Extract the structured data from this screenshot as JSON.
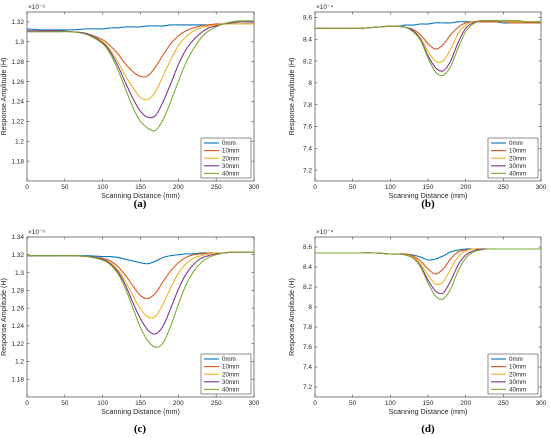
{
  "colors": {
    "0mm": "#0072BD",
    "10mm": "#D95319",
    "20mm": "#EDB120",
    "30mm": "#7E2F8E",
    "40mm": "#77AC30"
  },
  "chart_data": [
    {
      "type": "line",
      "caption": "(a)",
      "xlabel": "Scanning Distance (mm)",
      "ylabel": "Response Amplitude (H)",
      "exponent": "×10⁻³",
      "xlim": [
        0,
        300
      ],
      "ylim": [
        1.16,
        1.33
      ],
      "xticks": [
        "0",
        "50",
        "100",
        "150",
        "200",
        "250",
        "300"
      ],
      "yticks": [
        "1.18",
        "1.2",
        "1.22",
        "1.24",
        "1.26",
        "1.28",
        "1.3",
        "1.32"
      ],
      "legend_position": "right",
      "x": [
        0,
        20,
        40,
        60,
        80,
        100,
        110,
        120,
        130,
        140,
        150,
        160,
        170,
        180,
        190,
        200,
        210,
        220,
        230,
        240,
        250,
        260,
        270,
        280,
        290,
        300
      ],
      "series": [
        {
          "name": "0mm",
          "values": [
            1.313,
            1.312,
            1.312,
            1.312,
            1.313,
            1.313,
            1.314,
            1.314,
            1.315,
            1.315,
            1.315,
            1.316,
            1.316,
            1.316,
            1.317,
            1.317,
            1.317,
            1.317,
            1.317,
            1.317,
            1.317,
            1.318,
            1.318,
            1.318,
            1.318,
            1.318
          ]
        },
        {
          "name": "10mm",
          "values": [
            1.311,
            1.311,
            1.311,
            1.31,
            1.308,
            1.302,
            1.296,
            1.288,
            1.278,
            1.27,
            1.265,
            1.266,
            1.275,
            1.287,
            1.298,
            1.306,
            1.311,
            1.314,
            1.316,
            1.317,
            1.318,
            1.318,
            1.318,
            1.318,
            1.318,
            1.318
          ]
        },
        {
          "name": "20mm",
          "values": [
            1.311,
            1.311,
            1.311,
            1.31,
            1.308,
            1.3,
            1.292,
            1.28,
            1.266,
            1.254,
            1.244,
            1.242,
            1.25,
            1.266,
            1.282,
            1.296,
            1.305,
            1.311,
            1.314,
            1.316,
            1.317,
            1.318,
            1.318,
            1.318,
            1.318,
            1.318
          ]
        },
        {
          "name": "30mm",
          "values": [
            1.311,
            1.311,
            1.311,
            1.31,
            1.308,
            1.299,
            1.29,
            1.276,
            1.259,
            1.243,
            1.23,
            1.224,
            1.226,
            1.24,
            1.258,
            1.277,
            1.292,
            1.302,
            1.309,
            1.314,
            1.316,
            1.318,
            1.319,
            1.32,
            1.32,
            1.32
          ]
        },
        {
          "name": "40mm",
          "values": [
            1.31,
            1.31,
            1.31,
            1.31,
            1.307,
            1.298,
            1.288,
            1.272,
            1.253,
            1.234,
            1.22,
            1.213,
            1.211,
            1.222,
            1.24,
            1.26,
            1.279,
            1.293,
            1.304,
            1.311,
            1.315,
            1.318,
            1.32,
            1.321,
            1.321,
            1.321
          ]
        }
      ]
    },
    {
      "type": "line",
      "caption": "(b)",
      "xlabel": "Scanning Distance (mm)",
      "ylabel": "Response Amplitude (H)",
      "exponent": "×10⁻⁴",
      "xlim": [
        0,
        300
      ],
      "ylim": [
        7.1,
        8.65
      ],
      "xticks": [
        "0",
        "50",
        "100",
        "150",
        "200",
        "250",
        "300"
      ],
      "yticks": [
        "7.2",
        "7.4",
        "7.6",
        "7.8",
        "8",
        "8.2",
        "8.4",
        "8.6"
      ],
      "legend_position": "right",
      "x": [
        0,
        20,
        40,
        60,
        80,
        100,
        110,
        120,
        130,
        140,
        150,
        160,
        170,
        180,
        190,
        200,
        210,
        220,
        230,
        240,
        250,
        260,
        270,
        280,
        290,
        300
      ],
      "series": [
        {
          "name": "0mm",
          "values": [
            8.5,
            8.5,
            8.5,
            8.5,
            8.51,
            8.52,
            8.52,
            8.53,
            8.53,
            8.54,
            8.54,
            8.55,
            8.55,
            8.55,
            8.56,
            8.56,
            8.56,
            8.56,
            8.56,
            8.56,
            8.55,
            8.55,
            8.55,
            8.55,
            8.55,
            8.55
          ]
        },
        {
          "name": "10mm",
          "values": [
            8.5,
            8.5,
            8.5,
            8.5,
            8.51,
            8.52,
            8.52,
            8.51,
            8.49,
            8.44,
            8.36,
            8.31,
            8.35,
            8.44,
            8.51,
            8.55,
            8.56,
            8.56,
            8.56,
            8.56,
            8.56,
            8.55,
            8.55,
            8.55,
            8.55,
            8.55
          ]
        },
        {
          "name": "20mm",
          "values": [
            8.5,
            8.5,
            8.5,
            8.5,
            8.51,
            8.52,
            8.52,
            8.51,
            8.48,
            8.41,
            8.29,
            8.2,
            8.2,
            8.31,
            8.45,
            8.53,
            8.56,
            8.57,
            8.57,
            8.57,
            8.56,
            8.56,
            8.56,
            8.56,
            8.56,
            8.56
          ]
        },
        {
          "name": "30mm",
          "values": [
            8.5,
            8.5,
            8.5,
            8.5,
            8.51,
            8.52,
            8.52,
            8.51,
            8.48,
            8.4,
            8.25,
            8.14,
            8.11,
            8.2,
            8.37,
            8.5,
            8.55,
            8.57,
            8.57,
            8.57,
            8.57,
            8.57,
            8.57,
            8.56,
            8.56,
            8.56
          ]
        },
        {
          "name": "40mm",
          "values": [
            8.5,
            8.5,
            8.5,
            8.5,
            8.51,
            8.52,
            8.52,
            8.51,
            8.47,
            8.39,
            8.23,
            8.1,
            8.07,
            8.15,
            8.32,
            8.47,
            8.54,
            8.57,
            8.57,
            8.57,
            8.57,
            8.57,
            8.57,
            8.56,
            8.56,
            8.56
          ]
        }
      ]
    },
    {
      "type": "line",
      "caption": "(c)",
      "xlabel": "Scanning Distance (mm)",
      "ylabel": "Response Amplitude (H)",
      "exponent": "×10⁻³",
      "xlim": [
        0,
        300
      ],
      "ylim": [
        1.16,
        1.34
      ],
      "xticks": [
        "0",
        "50",
        "100",
        "150",
        "200",
        "250",
        "300"
      ],
      "yticks": [
        "1.18",
        "1.2",
        "1.22",
        "1.24",
        "1.26",
        "1.28",
        "1.3",
        "1.32",
        "1.34"
      ],
      "legend_position": "right",
      "x": [
        0,
        20,
        40,
        60,
        80,
        100,
        110,
        120,
        130,
        140,
        150,
        160,
        170,
        180,
        190,
        200,
        210,
        220,
        230,
        240,
        250,
        260,
        270,
        280,
        290,
        300
      ],
      "series": [
        {
          "name": "0mm",
          "values": [
            1.319,
            1.319,
            1.319,
            1.319,
            1.319,
            1.318,
            1.318,
            1.317,
            1.315,
            1.313,
            1.311,
            1.31,
            1.313,
            1.317,
            1.319,
            1.32,
            1.321,
            1.321,
            1.322,
            1.322,
            1.322,
            1.322,
            1.323,
            1.323,
            1.323,
            1.323
          ]
        },
        {
          "name": "10mm",
          "values": [
            1.319,
            1.319,
            1.319,
            1.319,
            1.318,
            1.316,
            1.313,
            1.307,
            1.297,
            1.285,
            1.274,
            1.271,
            1.277,
            1.29,
            1.302,
            1.311,
            1.317,
            1.32,
            1.321,
            1.322,
            1.322,
            1.322,
            1.323,
            1.323,
            1.323,
            1.323
          ]
        },
        {
          "name": "20mm",
          "values": [
            1.319,
            1.319,
            1.319,
            1.319,
            1.318,
            1.315,
            1.311,
            1.303,
            1.29,
            1.274,
            1.259,
            1.25,
            1.251,
            1.265,
            1.283,
            1.299,
            1.31,
            1.316,
            1.319,
            1.321,
            1.322,
            1.322,
            1.323,
            1.323,
            1.323,
            1.323
          ]
        },
        {
          "name": "30mm",
          "values": [
            1.319,
            1.319,
            1.319,
            1.319,
            1.318,
            1.315,
            1.31,
            1.301,
            1.286,
            1.266,
            1.248,
            1.235,
            1.231,
            1.24,
            1.26,
            1.281,
            1.298,
            1.309,
            1.316,
            1.319,
            1.321,
            1.322,
            1.323,
            1.323,
            1.323,
            1.323
          ]
        },
        {
          "name": "40mm",
          "values": [
            1.319,
            1.319,
            1.319,
            1.319,
            1.318,
            1.314,
            1.309,
            1.299,
            1.282,
            1.26,
            1.238,
            1.223,
            1.216,
            1.221,
            1.24,
            1.264,
            1.286,
            1.301,
            1.311,
            1.317,
            1.32,
            1.322,
            1.323,
            1.323,
            1.323,
            1.323
          ]
        }
      ]
    },
    {
      "type": "line",
      "caption": "(d)",
      "xlabel": "Scanning Distance (mm)",
      "ylabel": "Response Amplitude (H)",
      "exponent": "×10⁻⁴",
      "xlim": [
        0,
        300
      ],
      "ylim": [
        7.1,
        8.7
      ],
      "xticks": [
        "0",
        "50",
        "100",
        "150",
        "200",
        "250",
        "300"
      ],
      "yticks": [
        "7.2",
        "7.4",
        "7.6",
        "7.8",
        "8",
        "8.2",
        "8.4",
        "8.6"
      ],
      "legend_position": "right",
      "x": [
        0,
        20,
        40,
        60,
        80,
        100,
        110,
        120,
        130,
        140,
        150,
        160,
        170,
        180,
        190,
        200,
        210,
        220,
        230,
        240,
        250,
        260,
        270,
        280,
        290,
        300
      ],
      "series": [
        {
          "name": "0mm",
          "values": [
            8.54,
            8.54,
            8.54,
            8.54,
            8.54,
            8.53,
            8.53,
            8.53,
            8.52,
            8.5,
            8.47,
            8.48,
            8.51,
            8.55,
            8.57,
            8.58,
            8.58,
            8.58,
            8.58,
            8.58,
            8.58,
            8.58,
            8.58,
            8.58,
            8.58,
            8.58
          ]
        },
        {
          "name": "10mm",
          "values": [
            8.54,
            8.54,
            8.54,
            8.54,
            8.54,
            8.53,
            8.53,
            8.53,
            8.51,
            8.46,
            8.38,
            8.33,
            8.38,
            8.48,
            8.55,
            8.57,
            8.58,
            8.58,
            8.58,
            8.58,
            8.58,
            8.58,
            8.58,
            8.58,
            8.58,
            8.58
          ]
        },
        {
          "name": "20mm",
          "values": [
            8.54,
            8.54,
            8.54,
            8.54,
            8.54,
            8.53,
            8.53,
            8.52,
            8.5,
            8.43,
            8.32,
            8.23,
            8.25,
            8.38,
            8.5,
            8.56,
            8.58,
            8.58,
            8.58,
            8.58,
            8.58,
            8.58,
            8.58,
            8.58,
            8.58,
            8.58
          ]
        },
        {
          "name": "30mm",
          "values": [
            8.54,
            8.54,
            8.54,
            8.54,
            8.54,
            8.53,
            8.53,
            8.52,
            8.49,
            8.41,
            8.27,
            8.16,
            8.14,
            8.26,
            8.42,
            8.52,
            8.56,
            8.58,
            8.58,
            8.58,
            8.58,
            8.58,
            8.58,
            8.58,
            8.58,
            8.58
          ]
        },
        {
          "name": "40mm",
          "values": [
            8.54,
            8.54,
            8.54,
            8.54,
            8.54,
            8.53,
            8.53,
            8.52,
            8.49,
            8.4,
            8.24,
            8.11,
            8.08,
            8.18,
            8.36,
            8.49,
            8.55,
            8.57,
            8.58,
            8.58,
            8.58,
            8.58,
            8.58,
            8.58,
            8.58,
            8.58
          ]
        }
      ]
    }
  ]
}
